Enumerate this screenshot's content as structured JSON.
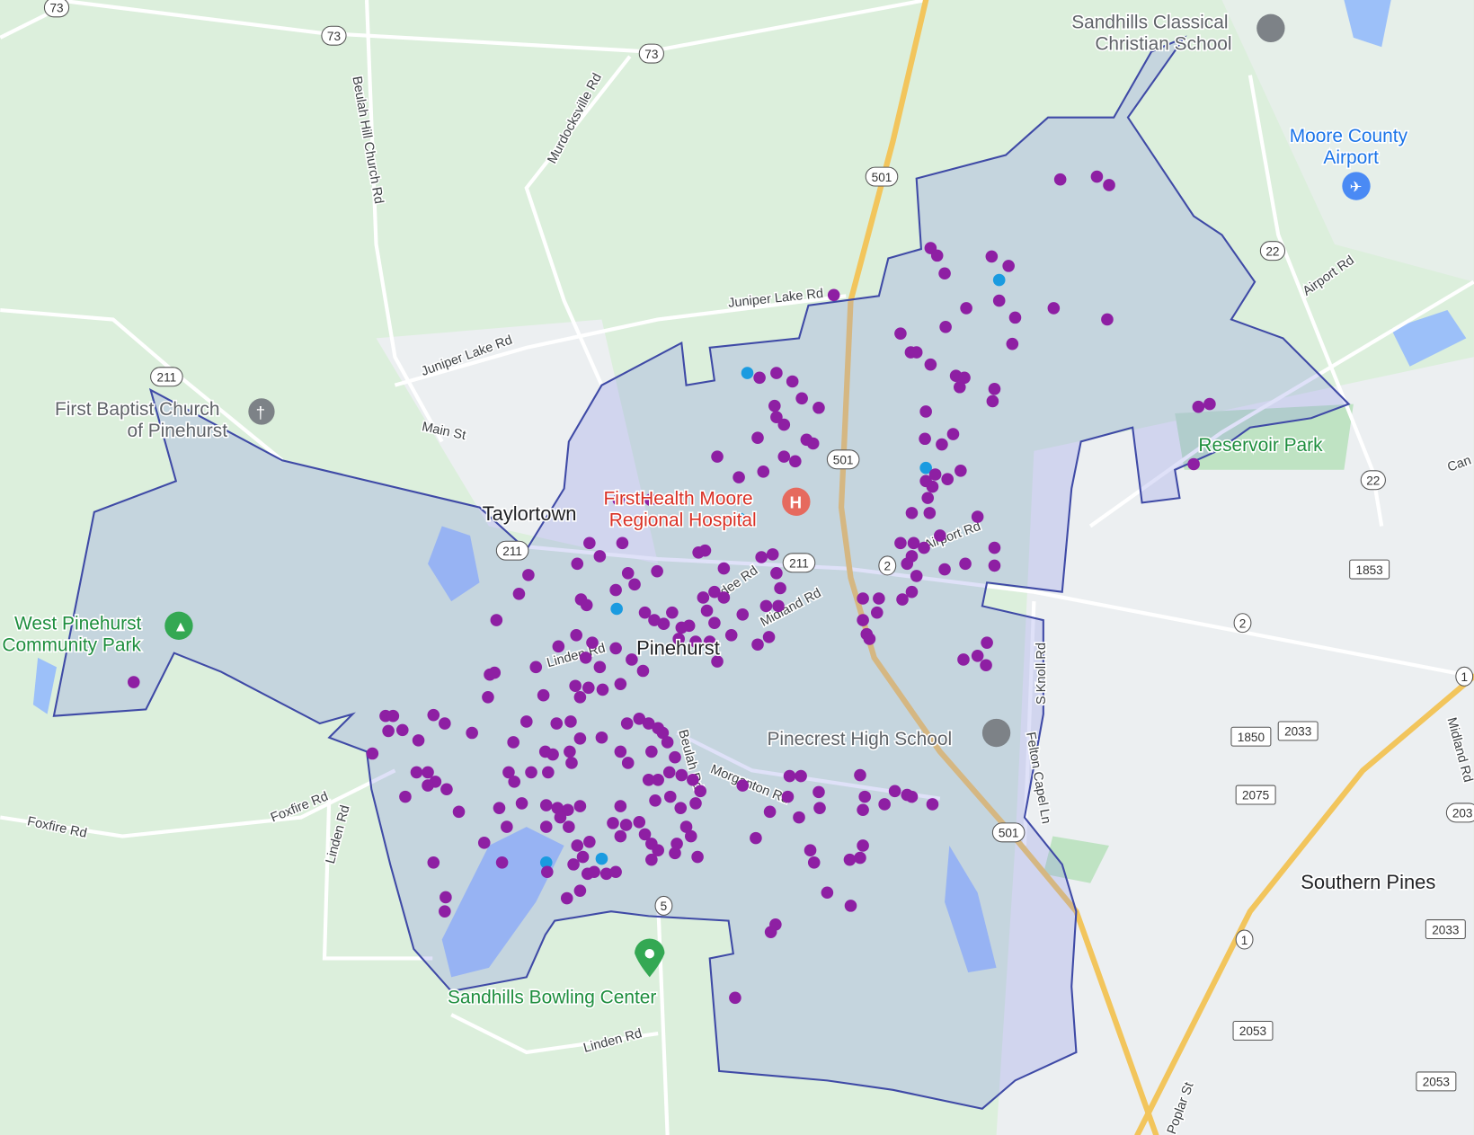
{
  "colors": {
    "land": "#dcefdc",
    "urban": "#eceff1",
    "water": "#9cc0f9",
    "highway": "#f2c55c",
    "boundary_fill": "#8c93e6",
    "boundary_stroke": "#3f4aa6",
    "marker_primary": "#8e1fa3",
    "marker_secondary": "#1a9be0",
    "poi_green": "#1e8e3e",
    "poi_red": "#d93025",
    "poi_blue": "#1a73e8"
  },
  "places": {
    "taylortown": "Taylortown",
    "pinehurst": "Pinehurst",
    "southern_pines": "Southern Pines"
  },
  "pois": {
    "church_line1": "First Baptist Church",
    "church_line2": "of Pinehurst",
    "hospital_line1": "FirstHealth Moore",
    "hospital_line2": "Regional Hospital",
    "park_line1": "West Pinehurst",
    "park_line2": "Community Park",
    "school": "Pinecrest High School",
    "bowling": "Sandhills Bowling Center",
    "classical_line1": "Sandhills Classical",
    "classical_line2": "Christian School",
    "airport_line1": "Moore County",
    "airport_line2": "Airport",
    "reservoir": "Reservoir Park"
  },
  "roads": {
    "beulah_hill": "Beulah Hill Church Rd",
    "murdocksville": "Murdocksville Rd",
    "juniper_lake_1": "Juniper Lake Rd",
    "juniper_lake_2": "Juniper Lake Rd",
    "main_st": "Main St",
    "linden_1": "Linden Rd",
    "linden_2": "Linden Rd",
    "linden_3": "Linden Rd",
    "foxfire_1": "Foxfire Rd",
    "foxfire_2": "Foxfire Rd",
    "dundee": "dee Rd",
    "midland_1": "Midland Rd",
    "midland_2": "Midland Rd",
    "airport_1": "Airport Rd",
    "airport_2": "Airport Rd",
    "morganton": "Morganton Rd",
    "beulah": "Beulah Rd",
    "knoll": "S Knoll Rd",
    "felton": "Felton Capel Ln",
    "poplar": "Poplar St",
    "cam": "Can"
  },
  "shields": [
    "73",
    "73",
    "73",
    "501",
    "501",
    "501",
    "211",
    "211",
    "211",
    "2",
    "2",
    "22",
    "22",
    "1853",
    "1850",
    "2033",
    "2075",
    "2033",
    "2053",
    "2053",
    "1",
    "1",
    "5",
    "203"
  ]
}
